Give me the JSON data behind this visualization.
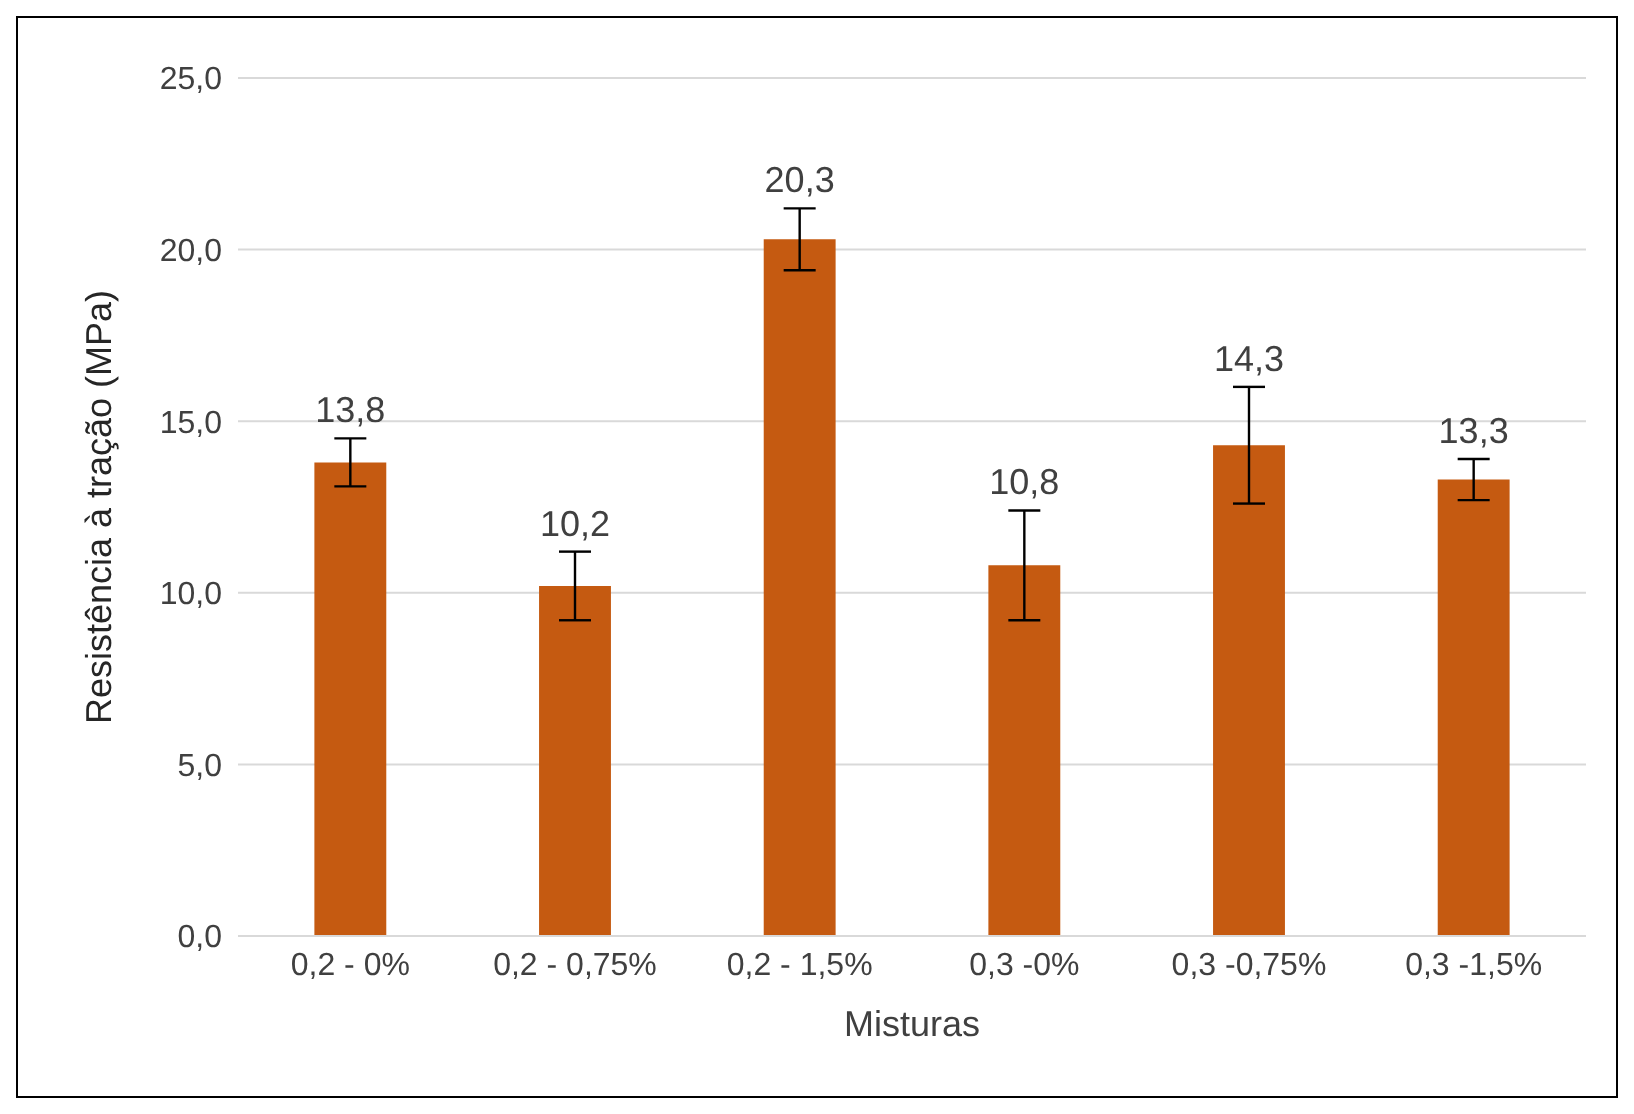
{
  "chart_data": {
    "type": "bar",
    "xlabel": "Misturas",
    "ylabel": "Resistência à tração  (MPa)",
    "categories": [
      "0,2 - 0%",
      "0,2 - 0,75%",
      "0,2 - 1,5%",
      "0,3 -0%",
      "0,3 -0,75%",
      "0,3 -1,5%"
    ],
    "values": [
      13.8,
      10.2,
      20.3,
      10.8,
      14.3,
      13.3
    ],
    "errors": [
      0.7,
      1.0,
      0.9,
      1.6,
      1.7,
      0.6
    ],
    "value_labels": [
      "13,8",
      "10,2",
      "20,3",
      "10,8",
      "14,3",
      "13,3"
    ],
    "color": "#c55a11",
    "ylim": [
      0,
      25
    ],
    "yticks": [
      {
        "value": 0,
        "label": "0,0"
      },
      {
        "value": 5,
        "label": "5,0"
      },
      {
        "value": 10,
        "label": "10,0"
      },
      {
        "value": 15,
        "label": "15,0"
      },
      {
        "value": 20,
        "label": "20,0"
      },
      {
        "value": 25,
        "label": "25,0"
      }
    ],
    "grid": "y",
    "legend": false
  }
}
